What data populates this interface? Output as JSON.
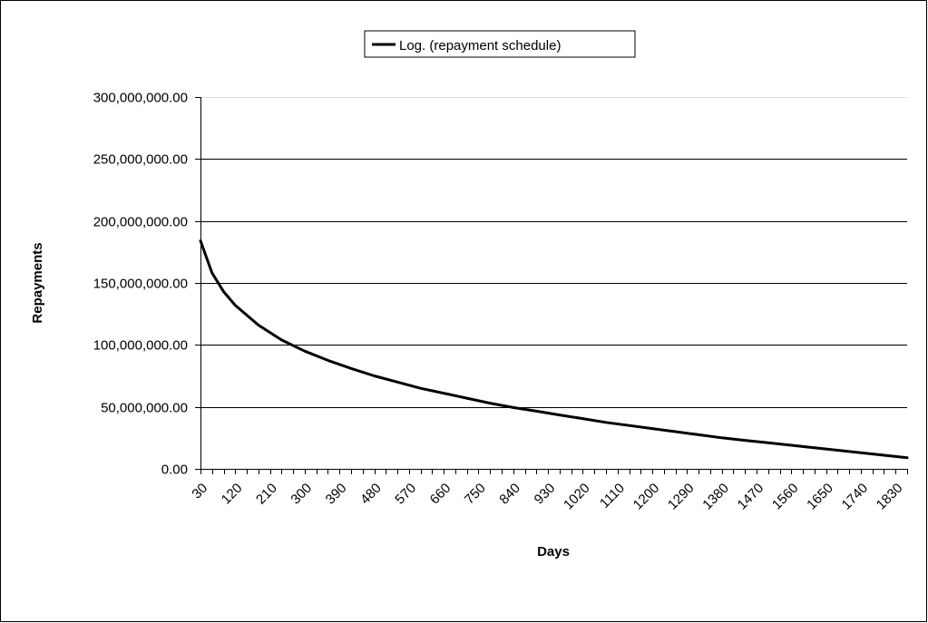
{
  "chart_data": {
    "type": "line",
    "title": "",
    "xlabel": "Days",
    "ylabel": "Repayments",
    "x_tick_labels": [
      "30",
      "120",
      "210",
      "300",
      "390",
      "480",
      "570",
      "660",
      "750",
      "840",
      "930",
      "1020",
      "1110",
      "1200",
      "1290",
      "1380",
      "1470",
      "1560",
      "1650",
      "1740",
      "1830"
    ],
    "x_start": 30,
    "x_end": 1860,
    "x_step": 30,
    "ylim": [
      0,
      300000000
    ],
    "y_tick_values": [
      0,
      50000000,
      100000000,
      150000000,
      200000000,
      250000000,
      300000000
    ],
    "y_tick_labels": [
      "0.00",
      "50,000,000.00",
      "100,000,000.00",
      "150,000,000.00",
      "200,000,000.00",
      "250,000,000.00",
      "300,000,000.00"
    ],
    "grid": true,
    "legend": {
      "position": "top-center",
      "entries": [
        "Log. (repayment schedule)"
      ]
    },
    "series": [
      {
        "name": "Log. (repayment schedule)",
        "color": "#000000",
        "x": [
          30,
          60,
          90,
          120,
          180,
          240,
          300,
          360,
          420,
          480,
          540,
          600,
          660,
          720,
          780,
          840,
          900,
          960,
          1020,
          1080,
          1140,
          1200,
          1260,
          1320,
          1380,
          1440,
          1500,
          1560,
          1620,
          1680,
          1740,
          1800,
          1860
        ],
        "y": [
          184000000,
          158000000,
          143000000,
          132000000,
          116000000,
          104000000,
          95000000,
          87500000,
          81000000,
          75000000,
          70000000,
          65000000,
          61000000,
          57000000,
          53000000,
          49500000,
          46500000,
          43500000,
          40500000,
          37500000,
          35000000,
          32500000,
          30000000,
          27500000,
          25000000,
          23000000,
          21000000,
          19000000,
          17000000,
          15000000,
          13000000,
          11000000,
          9000000
        ]
      }
    ]
  }
}
